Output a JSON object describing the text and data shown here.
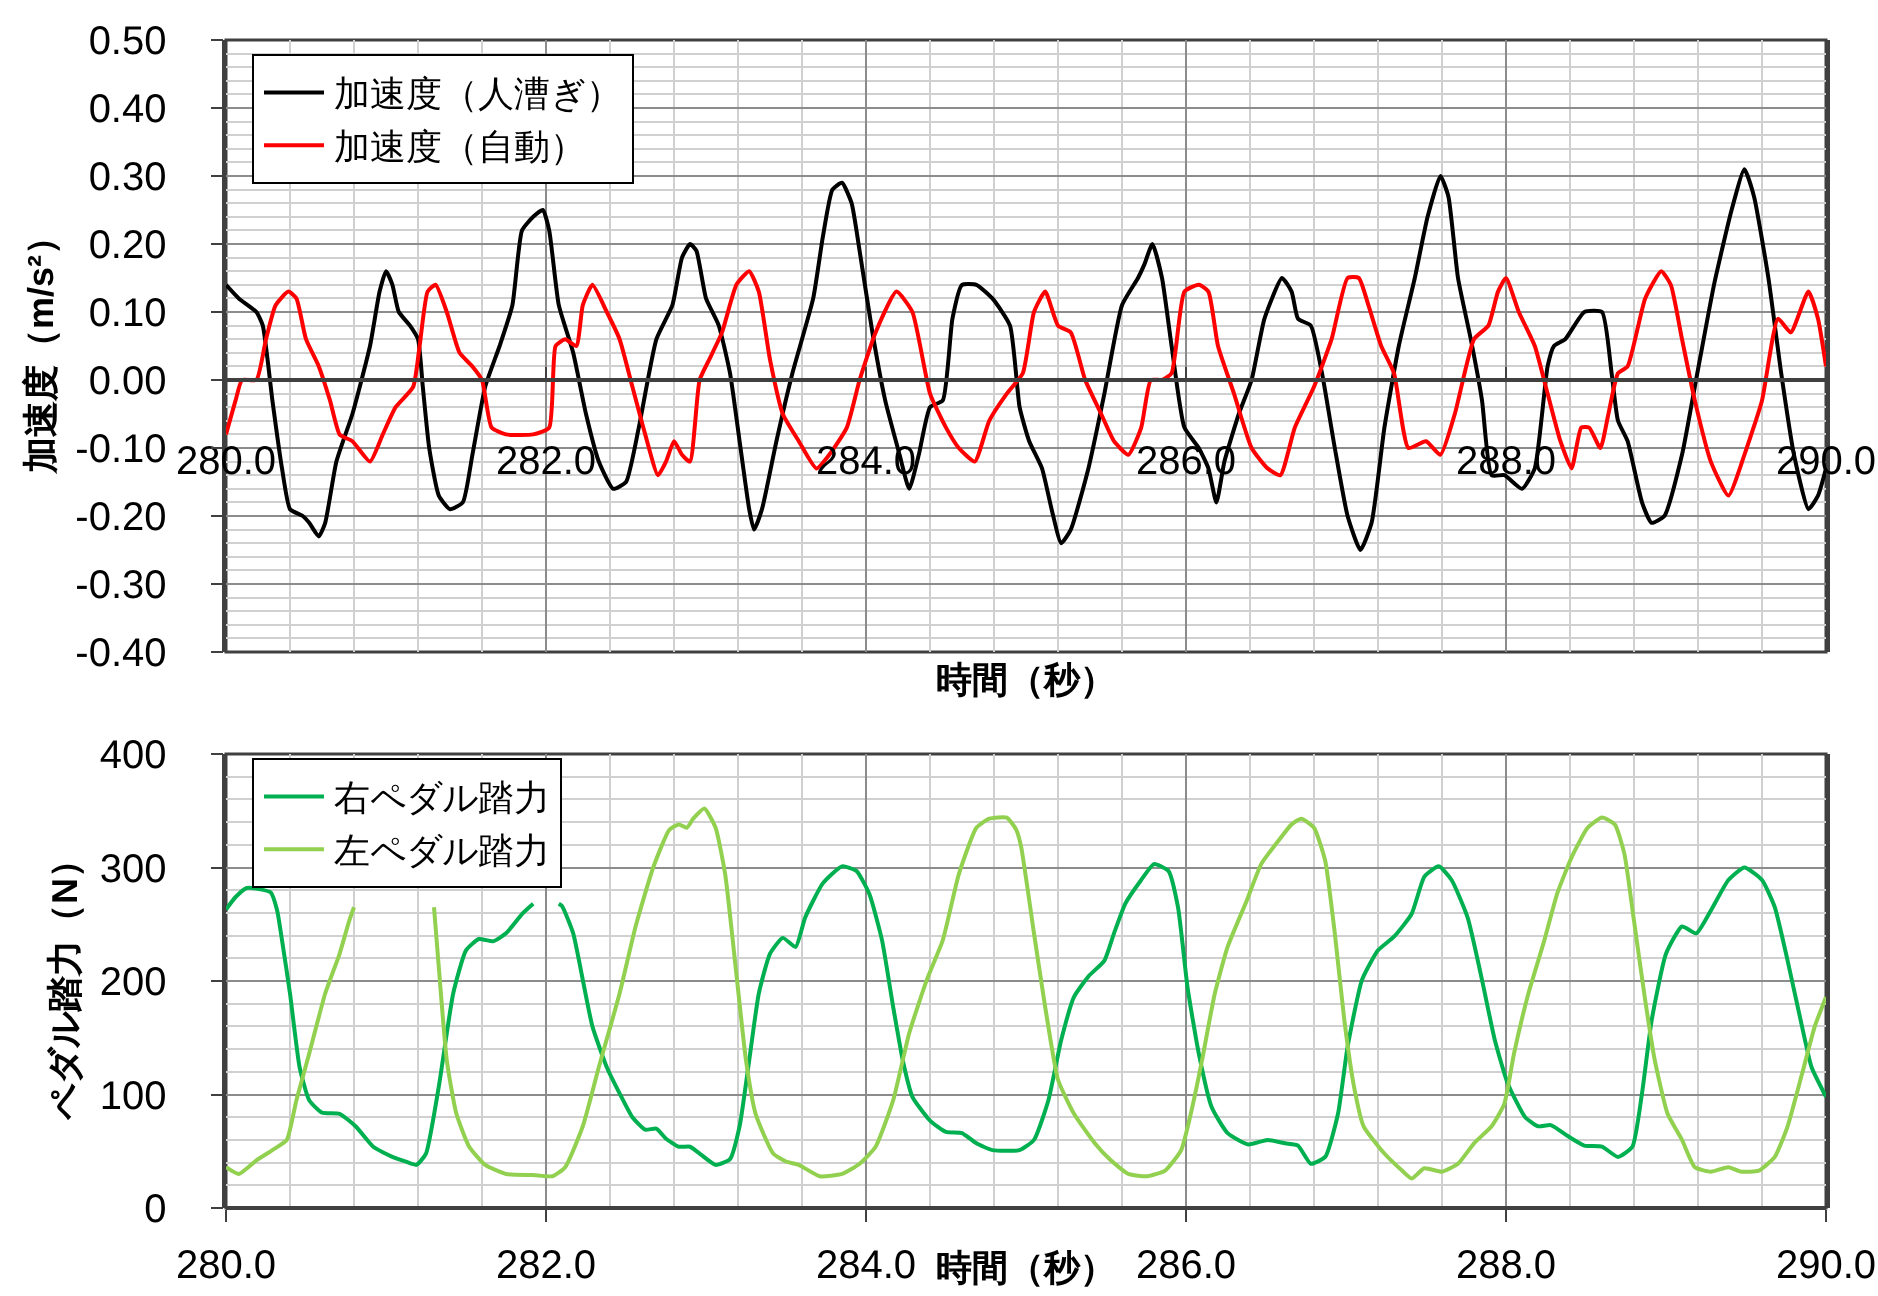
{
  "chart_data": [
    {
      "type": "line",
      "xlabel": "時間（秒）",
      "ylabel": "加速度（m/s²）",
      "xlim": [
        280,
        290
      ],
      "ylim": [
        -0.4,
        0.5
      ],
      "xticks": [
        {
          "value": 280,
          "label": "280.0"
        },
        {
          "value": 280.4,
          "label": null
        },
        {
          "value": 280.8,
          "label": null
        },
        {
          "value": 281.2,
          "label": null
        },
        {
          "value": 281.6,
          "label": null
        },
        {
          "value": 282,
          "label": "282.0"
        },
        {
          "value": 282.4,
          "label": null
        },
        {
          "value": 282.8,
          "label": null
        },
        {
          "value": 283.2,
          "label": null
        },
        {
          "value": 283.6,
          "label": null
        },
        {
          "value": 284,
          "label": "284.0"
        },
        {
          "value": 284.4,
          "label": null
        },
        {
          "value": 284.8,
          "label": null
        },
        {
          "value": 285.2,
          "label": null
        },
        {
          "value": 285.6,
          "label": null
        },
        {
          "value": 286,
          "label": "286.0"
        },
        {
          "value": 286.4,
          "label": null
        },
        {
          "value": 286.8,
          "label": null
        },
        {
          "value": 287.2,
          "label": null
        },
        {
          "value": 287.6,
          "label": null
        },
        {
          "value": 288,
          "label": "288.0"
        },
        {
          "value": 288.4,
          "label": null
        },
        {
          "value": 288.8,
          "label": null
        },
        {
          "value": 289.2,
          "label": null
        },
        {
          "value": 289.6,
          "label": null
        },
        {
          "value": 290,
          "label": "290.0"
        }
      ],
      "yticks": [
        {
          "value": -0.4,
          "label": "-0.40"
        },
        {
          "value": -0.38,
          "label": null
        },
        {
          "value": -0.36,
          "label": null
        },
        {
          "value": -0.34,
          "label": null
        },
        {
          "value": -0.32,
          "label": null
        },
        {
          "value": -0.3,
          "label": "-0.30"
        },
        {
          "value": -0.28,
          "label": null
        },
        {
          "value": -0.26,
          "label": null
        },
        {
          "value": -0.24,
          "label": null
        },
        {
          "value": -0.22,
          "label": null
        },
        {
          "value": -0.2,
          "label": "-0.20"
        },
        {
          "value": -0.18,
          "label": null
        },
        {
          "value": -0.16,
          "label": null
        },
        {
          "value": -0.14,
          "label": null
        },
        {
          "value": -0.12,
          "label": null
        },
        {
          "value": -0.1,
          "label": "-0.10"
        },
        {
          "value": -0.08,
          "label": null
        },
        {
          "value": -0.06,
          "label": null
        },
        {
          "value": -0.04,
          "label": null
        },
        {
          "value": -0.02,
          "label": null
        },
        {
          "value": 0,
          "label": "0.00"
        },
        {
          "value": 0.02,
          "label": null
        },
        {
          "value": 0.04,
          "label": null
        },
        {
          "value": 0.06,
          "label": null
        },
        {
          "value": 0.08,
          "label": null
        },
        {
          "value": 0.1,
          "label": "0.10"
        },
        {
          "value": 0.12,
          "label": null
        },
        {
          "value": 0.14,
          "label": null
        },
        {
          "value": 0.16,
          "label": null
        },
        {
          "value": 0.18,
          "label": null
        },
        {
          "value": 0.2,
          "label": "0.20"
        },
        {
          "value": 0.22,
          "label": null
        },
        {
          "value": 0.24,
          "label": null
        },
        {
          "value": 0.26,
          "label": null
        },
        {
          "value": 0.28,
          "label": null
        },
        {
          "value": 0.3,
          "label": "0.30"
        },
        {
          "value": 0.32,
          "label": null
        },
        {
          "value": 0.34,
          "label": null
        },
        {
          "value": 0.36,
          "label": null
        },
        {
          "value": 0.38,
          "label": null
        },
        {
          "value": 0.4,
          "label": "0.40"
        },
        {
          "value": 0.42,
          "label": null
        },
        {
          "value": 0.44,
          "label": null
        },
        {
          "value": 0.46,
          "label": null
        },
        {
          "value": 0.48,
          "label": null
        },
        {
          "value": 0.5,
          "label": "0.50"
        }
      ],
      "grid": true,
      "legend": "top left",
      "series": [
        {
          "name": "加速度（人漕ぎ）",
          "color": "#000000",
          "x": [
            280.0,
            280.08,
            280.19,
            280.23,
            280.29,
            280.35,
            280.4,
            280.48,
            280.52,
            280.58,
            280.62,
            280.69,
            280.79,
            280.9,
            280.96,
            281.0,
            281.04,
            281.08,
            281.15,
            281.2,
            281.23,
            281.27,
            281.33,
            281.4,
            281.48,
            281.54,
            281.62,
            281.71,
            281.79,
            281.85,
            281.92,
            281.98,
            282.02,
            282.08,
            282.17,
            282.25,
            282.33,
            282.42,
            282.5,
            282.58,
            282.69,
            282.79,
            282.85,
            282.9,
            282.94,
            283.0,
            283.08,
            283.15,
            283.21,
            283.27,
            283.3,
            283.35,
            283.44,
            283.54,
            283.67,
            283.73,
            283.79,
            283.85,
            283.91,
            283.96,
            284.04,
            284.12,
            284.21,
            284.27,
            284.33,
            284.4,
            284.48,
            284.54,
            284.6,
            284.69,
            284.79,
            284.9,
            284.96,
            285.02,
            285.1,
            285.16,
            285.22,
            285.28,
            285.39,
            285.49,
            285.6,
            285.7,
            285.74,
            285.79,
            285.85,
            285.91,
            285.99,
            286.08,
            286.14,
            286.19,
            286.24,
            286.33,
            286.41,
            286.49,
            286.6,
            286.66,
            286.7,
            286.78,
            286.85,
            286.93,
            287.01,
            287.09,
            287.16,
            287.24,
            287.33,
            287.43,
            287.51,
            287.59,
            287.64,
            287.7,
            287.78,
            287.85,
            287.91,
            287.99,
            288.1,
            288.18,
            288.26,
            288.3,
            288.37,
            288.49,
            288.6,
            288.66,
            288.7,
            288.76,
            288.85,
            288.91,
            288.99,
            289.1,
            289.18,
            289.3,
            289.41,
            289.49,
            289.55,
            289.64,
            289.72,
            289.8,
            289.89,
            289.95,
            290.0
          ],
          "values": [
            0.14,
            0.12,
            0.1,
            0.08,
            -0.03,
            -0.13,
            -0.19,
            -0.2,
            -0.21,
            -0.23,
            -0.21,
            -0.12,
            -0.05,
            0.05,
            0.13,
            0.16,
            0.14,
            0.1,
            0.08,
            0.06,
            -0.01,
            -0.1,
            -0.17,
            -0.19,
            -0.18,
            -0.11,
            -0.01,
            0.05,
            0.11,
            0.22,
            0.24,
            0.25,
            0.22,
            0.11,
            0.04,
            -0.05,
            -0.12,
            -0.16,
            -0.15,
            -0.07,
            0.06,
            0.11,
            0.18,
            0.2,
            0.19,
            0.12,
            0.08,
            0.01,
            -0.09,
            -0.19,
            -0.22,
            -0.19,
            -0.09,
            0.01,
            0.12,
            0.21,
            0.28,
            0.29,
            0.26,
            0.19,
            0.07,
            -0.03,
            -0.11,
            -0.16,
            -0.11,
            -0.04,
            -0.03,
            0.09,
            0.14,
            0.14,
            0.12,
            0.08,
            -0.04,
            -0.09,
            -0.13,
            -0.19,
            -0.24,
            -0.22,
            -0.13,
            -0.02,
            0.11,
            0.15,
            0.17,
            0.2,
            0.15,
            0.05,
            -0.07,
            -0.1,
            -0.13,
            -0.18,
            -0.12,
            -0.05,
            0.0,
            0.09,
            0.15,
            0.13,
            0.09,
            0.08,
            0.01,
            -0.1,
            -0.2,
            -0.25,
            -0.21,
            -0.07,
            0.05,
            0.15,
            0.24,
            0.3,
            0.27,
            0.15,
            0.06,
            -0.03,
            -0.14,
            -0.14,
            -0.16,
            -0.13,
            0.02,
            0.05,
            0.06,
            0.1,
            0.1,
            0.01,
            -0.06,
            -0.09,
            -0.18,
            -0.21,
            -0.2,
            -0.11,
            -0.01,
            0.14,
            0.25,
            0.31,
            0.27,
            0.15,
            0.01,
            -0.11,
            -0.19,
            -0.17,
            -0.13
          ]
        },
        {
          "name": "加速度（自動）",
          "color": "#ff0000",
          "x": [
            280.0,
            280.06,
            280.1,
            280.19,
            280.25,
            280.31,
            280.39,
            280.44,
            280.5,
            280.58,
            280.65,
            280.71,
            280.79,
            280.9,
            280.98,
            281.06,
            281.17,
            281.21,
            281.26,
            281.31,
            281.38,
            281.46,
            281.54,
            281.6,
            281.66,
            281.75,
            281.92,
            282.02,
            282.06,
            282.12,
            282.19,
            282.23,
            282.29,
            282.38,
            282.46,
            282.54,
            282.62,
            282.7,
            282.75,
            282.8,
            282.85,
            282.9,
            282.96,
            283.02,
            283.1,
            283.19,
            283.27,
            283.33,
            283.4,
            283.48,
            283.58,
            283.69,
            283.77,
            283.88,
            283.96,
            284.06,
            284.19,
            284.29,
            284.4,
            284.5,
            284.58,
            284.68,
            284.77,
            284.88,
            284.98,
            285.05,
            285.12,
            285.2,
            285.28,
            285.37,
            285.47,
            285.55,
            285.64,
            285.72,
            285.78,
            285.85,
            285.91,
            285.99,
            286.08,
            286.14,
            286.2,
            286.3,
            286.41,
            286.51,
            286.59,
            286.68,
            286.8,
            286.91,
            287.01,
            287.08,
            287.14,
            287.22,
            287.3,
            287.39,
            287.5,
            287.59,
            287.68,
            287.8,
            287.89,
            287.95,
            288.0,
            288.08,
            288.18,
            288.26,
            288.34,
            288.41,
            288.47,
            288.52,
            288.59,
            288.64,
            288.7,
            288.76,
            288.87,
            288.97,
            289.03,
            289.1,
            289.18,
            289.28,
            289.39,
            289.49,
            289.6,
            289.7,
            289.78,
            289.89,
            289.95,
            290.0
          ],
          "values": [
            -0.08,
            -0.03,
            0.0,
            0.0,
            0.06,
            0.11,
            0.13,
            0.12,
            0.06,
            0.02,
            -0.03,
            -0.08,
            -0.09,
            -0.12,
            -0.08,
            -0.04,
            -0.01,
            0.05,
            0.13,
            0.14,
            0.1,
            0.04,
            0.02,
            0.0,
            -0.07,
            -0.08,
            -0.08,
            -0.07,
            0.05,
            0.06,
            0.05,
            0.11,
            0.14,
            0.1,
            0.06,
            -0.01,
            -0.08,
            -0.14,
            -0.12,
            -0.09,
            -0.11,
            -0.12,
            0.0,
            0.03,
            0.07,
            0.14,
            0.16,
            0.13,
            0.03,
            -0.05,
            -0.09,
            -0.13,
            -0.11,
            -0.07,
            0.0,
            0.07,
            0.13,
            0.1,
            -0.02,
            -0.07,
            -0.1,
            -0.12,
            -0.06,
            -0.02,
            0.01,
            0.1,
            0.13,
            0.08,
            0.07,
            0.0,
            -0.05,
            -0.09,
            -0.11,
            -0.07,
            0.0,
            0.0,
            0.01,
            0.13,
            0.14,
            0.13,
            0.05,
            -0.02,
            -0.1,
            -0.13,
            -0.14,
            -0.07,
            -0.01,
            0.06,
            0.15,
            0.15,
            0.11,
            0.05,
            0.01,
            -0.1,
            -0.09,
            -0.11,
            -0.05,
            0.06,
            0.08,
            0.13,
            0.15,
            0.1,
            0.05,
            -0.02,
            -0.09,
            -0.13,
            -0.07,
            -0.07,
            -0.1,
            -0.05,
            0.01,
            0.02,
            0.12,
            0.16,
            0.14,
            0.06,
            -0.03,
            -0.12,
            -0.17,
            -0.11,
            -0.03,
            0.09,
            0.07,
            0.13,
            0.09,
            0.02
          ]
        }
      ]
    },
    {
      "type": "line",
      "xlabel": "時間（秒）",
      "ylabel": "ペダル踏力（N）",
      "xlim": [
        280,
        290
      ],
      "ylim": [
        0,
        400
      ],
      "xticks": [
        {
          "value": 280,
          "label": "280.0"
        },
        {
          "value": 280.4,
          "label": null
        },
        {
          "value": 280.8,
          "label": null
        },
        {
          "value": 281.2,
          "label": null
        },
        {
          "value": 281.6,
          "label": null
        },
        {
          "value": 282,
          "label": "282.0"
        },
        {
          "value": 282.4,
          "label": null
        },
        {
          "value": 282.8,
          "label": null
        },
        {
          "value": 283.2,
          "label": null
        },
        {
          "value": 283.6,
          "label": null
        },
        {
          "value": 284,
          "label": "284.0"
        },
        {
          "value": 284.4,
          "label": null
        },
        {
          "value": 284.8,
          "label": null
        },
        {
          "value": 285.2,
          "label": null
        },
        {
          "value": 285.6,
          "label": null
        },
        {
          "value": 286,
          "label": "286.0"
        },
        {
          "value": 286.4,
          "label": null
        },
        {
          "value": 286.8,
          "label": null
        },
        {
          "value": 287.2,
          "label": null
        },
        {
          "value": 287.6,
          "label": null
        },
        {
          "value": 288,
          "label": "288.0"
        },
        {
          "value": 288.4,
          "label": null
        },
        {
          "value": 288.8,
          "label": null
        },
        {
          "value": 289.2,
          "label": null
        },
        {
          "value": 289.6,
          "label": null
        },
        {
          "value": 290,
          "label": "290.0"
        }
      ],
      "yticks": [
        0,
        {
          "value": 20,
          "label": null
        },
        {
          "value": 40,
          "label": null
        },
        {
          "value": 60,
          "label": null
        },
        {
          "value": 80,
          "label": null
        },
        100,
        {
          "value": 120,
          "label": null
        },
        {
          "value": 140,
          "label": null
        },
        {
          "value": 160,
          "label": null
        },
        {
          "value": 180,
          "label": null
        },
        200,
        {
          "value": 220,
          "label": null
        },
        {
          "value": 240,
          "label": null
        },
        {
          "value": 260,
          "label": null
        },
        {
          "value": 280,
          "label": null
        },
        300,
        {
          "value": 320,
          "label": null
        },
        {
          "value": 340,
          "label": null
        },
        {
          "value": 360,
          "label": null
        },
        {
          "value": 380,
          "label": null
        },
        400
      ],
      "grid": true,
      "legend": "top left",
      "series": [
        {
          "name": "右ペダル踏力",
          "color": "#00b050",
          "x": [
            280.0,
            280.06,
            280.13,
            280.28,
            280.32,
            280.35,
            280.4,
            280.46,
            280.52,
            280.6,
            280.71,
            280.81,
            280.92,
            281.04,
            281.12,
            281.19,
            281.25,
            281.33,
            281.42,
            281.5,
            281.58,
            281.67,
            281.75,
            281.85,
            281.92,
            282.0,
            282.08,
            282.1,
            282.17,
            282.23,
            282.29,
            282.38,
            282.46,
            282.54,
            282.62,
            282.69,
            282.75,
            282.83,
            282.9,
            282.96,
            283.06,
            283.15,
            283.21,
            283.27,
            283.33,
            283.4,
            283.48,
            283.56,
            283.62,
            283.73,
            283.85,
            283.94,
            284.02,
            284.1,
            284.17,
            284.23,
            284.29,
            284.4,
            284.5,
            284.6,
            284.69,
            284.79,
            284.96,
            285.05,
            285.14,
            285.22,
            285.3,
            285.39,
            285.49,
            285.55,
            285.62,
            285.72,
            285.8,
            285.89,
            285.95,
            286.01,
            286.08,
            286.16,
            286.26,
            286.39,
            286.51,
            286.62,
            286.7,
            286.78,
            286.87,
            286.95,
            287.01,
            287.1,
            287.2,
            287.3,
            287.41,
            287.49,
            287.58,
            287.66,
            287.76,
            287.85,
            287.93,
            288.01,
            288.12,
            288.2,
            288.28,
            288.39,
            288.49,
            288.6,
            288.7,
            288.79,
            288.85,
            288.91,
            289.0,
            289.1,
            289.19,
            289.28,
            289.39,
            289.49,
            289.6,
            289.68,
            289.76,
            289.85,
            289.91,
            290.0
          ],
          "values": [
            263,
            274,
            282,
            278,
            262,
            236,
            189,
            124,
            95,
            84,
            83,
            72,
            54,
            45,
            41,
            38,
            48,
            107,
            189,
            227,
            237,
            235,
            242,
            259,
            268,
            null,
            268,
            266,
            242,
            201,
            160,
            124,
            101,
            80,
            69,
            70,
            61,
            54,
            54,
            48,
            38,
            43,
            72,
            130,
            189,
            224,
            238,
            230,
            256,
            286,
            301,
            297,
            277,
            236,
            177,
            130,
            98,
            77,
            67,
            66,
            57,
            51,
            51,
            60,
            95,
            148,
            186,
            204,
            218,
            242,
            268,
            289,
            303,
            297,
            265,
            194,
            136,
            89,
            66,
            56,
            60,
            57,
            55,
            39,
            45,
            83,
            142,
            201,
            227,
            239,
            259,
            292,
            301,
            289,
            256,
            201,
            148,
            110,
            80,
            72,
            73,
            63,
            55,
            54,
            45,
            54,
            101,
            165,
            224,
            248,
            242,
            262,
            289,
            300,
            289,
            265,
            218,
            160,
            124,
            98
          ]
        },
        {
          "name": "左ペダル踏力",
          "color": "#92d050",
          "x": [
            280.0,
            280.08,
            280.19,
            280.29,
            280.38,
            280.44,
            280.52,
            280.62,
            280.71,
            280.77,
            280.8,
            281.0,
            281.3,
            281.33,
            281.38,
            281.44,
            281.52,
            281.62,
            281.75,
            281.92,
            282.04,
            282.12,
            282.23,
            282.33,
            282.46,
            282.56,
            282.67,
            282.77,
            282.83,
            282.88,
            282.92,
            282.99,
            283.06,
            283.12,
            283.19,
            283.25,
            283.31,
            283.42,
            283.5,
            283.58,
            283.71,
            283.85,
            283.96,
            284.06,
            284.17,
            284.27,
            284.38,
            284.48,
            284.58,
            284.69,
            284.77,
            284.88,
            284.94,
            284.97,
            285.05,
            285.12,
            285.2,
            285.3,
            285.43,
            285.53,
            285.64,
            285.76,
            285.87,
            285.97,
            286.03,
            286.1,
            286.18,
            286.26,
            286.38,
            286.47,
            286.58,
            286.66,
            286.72,
            286.8,
            286.87,
            286.93,
            286.99,
            287.05,
            287.11,
            287.24,
            287.35,
            287.41,
            287.49,
            287.6,
            287.7,
            287.8,
            287.91,
            287.99,
            288.05,
            288.14,
            288.24,
            288.32,
            288.41,
            288.51,
            288.6,
            288.68,
            288.74,
            288.8,
            288.87,
            288.93,
            289.01,
            289.1,
            289.18,
            289.28,
            289.39,
            289.47,
            289.58,
            289.68,
            289.76,
            289.85,
            289.93,
            290.0
          ],
          "values": [
            36,
            30,
            42,
            51,
            60,
            95,
            136,
            189,
            224,
            253,
            265,
            null,
            265,
            212,
            130,
            83,
            54,
            38,
            30,
            29,
            28,
            36,
            72,
            124,
            189,
            248,
            300,
            333,
            338,
            335,
            343,
            352,
            335,
            294,
            206,
            130,
            83,
            48,
            41,
            38,
            28,
            30,
            39,
            54,
            95,
            154,
            201,
            236,
            294,
            335,
            343,
            344,
            333,
            318,
            242,
            177,
            113,
            83,
            57,
            42,
            30,
            28,
            33,
            51,
            83,
            130,
            189,
            230,
            271,
            303,
            324,
            338,
            343,
            335,
            306,
            242,
            165,
            107,
            72,
            48,
            33,
            26,
            35,
            32,
            39,
            57,
            72,
            92,
            136,
            189,
            236,
            277,
            309,
            335,
            344,
            338,
            312,
            253,
            183,
            130,
            83,
            60,
            36,
            32,
            36,
            32,
            33,
            45,
            72,
            118,
            160,
            186
          ]
        }
      ]
    }
  ]
}
